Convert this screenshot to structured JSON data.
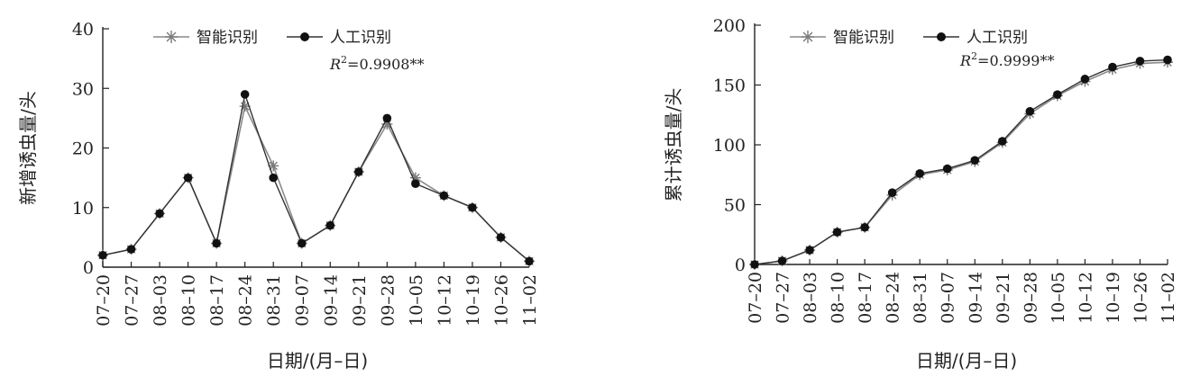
{
  "chart_data": [
    {
      "type": "line",
      "xlabel": "日期/(月–日)",
      "ylabel": "新增诱虫量/头",
      "ylim": [
        0,
        40
      ],
      "yticks": [
        "0",
        "10",
        "20",
        "30",
        "40"
      ],
      "categories": [
        "07–20",
        "07–27",
        "08–03",
        "08–10",
        "08–17",
        "08–24",
        "08–31",
        "09–07",
        "09–14",
        "09–21",
        "09–28",
        "10–05",
        "10–12",
        "10–19",
        "10–26",
        "11–02"
      ],
      "series": [
        {
          "name": "智能识别",
          "marker": "asterisk",
          "color": "#8a8a8a",
          "values": [
            2,
            3,
            9,
            15,
            4,
            27,
            17,
            4,
            7,
            16,
            24,
            15,
            12,
            10,
            5,
            1
          ]
        },
        {
          "name": "人工识别",
          "marker": "circle",
          "color": "#111111",
          "values": [
            2,
            3,
            9,
            15,
            4,
            29,
            15,
            4,
            7,
            16,
            25,
            14,
            12,
            10,
            5,
            1
          ]
        }
      ],
      "annotation": {
        "r_label": "R",
        "r_sup": "2",
        "r_value": "=0.9908**"
      },
      "legend_position": "top"
    },
    {
      "type": "line",
      "xlabel": "日期/(月–日)",
      "ylabel": "累计诱虫量/头",
      "ylim": [
        0,
        200
      ],
      "yticks": [
        "0",
        "50",
        "100",
        "150",
        "200"
      ],
      "categories": [
        "07–20",
        "07–27",
        "08–03",
        "08–10",
        "08–17",
        "08–24",
        "08–31",
        "09–07",
        "09–14",
        "09–21",
        "09–28",
        "10–05",
        "10–12",
        "10–19",
        "10–26",
        "11–02"
      ],
      "series": [
        {
          "name": "智能识别",
          "marker": "asterisk",
          "color": "#8a8a8a",
          "values": [
            0,
            3,
            12,
            27,
            31,
            58,
            75,
            79,
            86,
            102,
            126,
            141,
            153,
            163,
            168,
            169
          ]
        },
        {
          "name": "人工识别",
          "marker": "circle",
          "color": "#111111",
          "values": [
            0,
            3,
            12,
            27,
            31,
            60,
            76,
            80,
            87,
            103,
            128,
            142,
            155,
            165,
            170,
            171
          ]
        }
      ],
      "annotation": {
        "r_label": "R",
        "r_sup": "2",
        "r_value": "=0.9999**"
      },
      "legend_position": "top"
    }
  ]
}
